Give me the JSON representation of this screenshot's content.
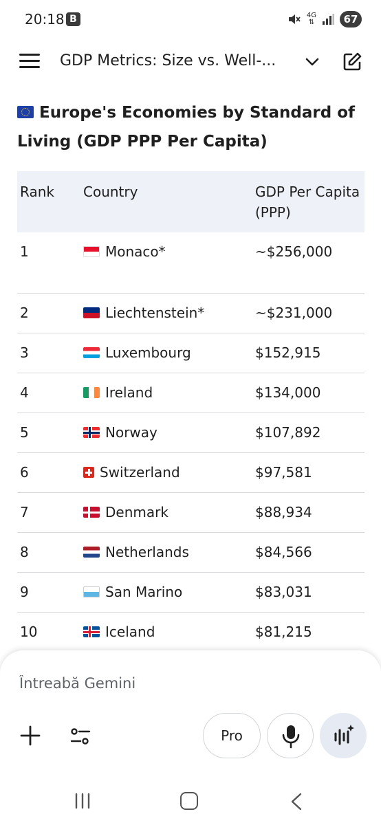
{
  "status_bar": {
    "time": "20:18",
    "notif_badge": "B",
    "network": "4G",
    "battery": "67"
  },
  "header": {
    "title": "GDP Metrics: Size vs. Well-...",
    "menu_icon": "hamburger-menu-icon",
    "chevron_icon": "chevron-down-icon",
    "edit_icon": "edit-icon"
  },
  "content": {
    "heading": "Europe's Economies by Standard of Living (GDP PPP Per Capita)",
    "table": {
      "headers": {
        "rank": "Rank",
        "country": "Country",
        "gdp_line1": "GDP Per Capita",
        "gdp_line2": "(PPP)"
      },
      "rows": [
        {
          "rank": "1",
          "country": "Monaco*",
          "gdp": "~$256,000",
          "flag": "monaco"
        },
        {
          "rank": "2",
          "country": "Liechtenstein*",
          "gdp": "~$231,000",
          "flag": "liechtenstein"
        },
        {
          "rank": "3",
          "country": "Luxembourg",
          "gdp": "$152,915",
          "flag": "luxembourg"
        },
        {
          "rank": "4",
          "country": "Ireland",
          "gdp": "$134,000",
          "flag": "ireland"
        },
        {
          "rank": "5",
          "country": "Norway",
          "gdp": "$107,892",
          "flag": "norway"
        },
        {
          "rank": "6",
          "country": "Switzerland",
          "gdp": "$97,581",
          "flag": "switzerland"
        },
        {
          "rank": "7",
          "country": "Denmark",
          "gdp": "$88,934",
          "flag": "denmark"
        },
        {
          "rank": "8",
          "country": "Netherlands",
          "gdp": "$84,566",
          "flag": "netherlands"
        },
        {
          "rank": "9",
          "country": "San Marino",
          "gdp": "$83,031",
          "flag": "san-marino"
        },
        {
          "rank": "10",
          "country": "Iceland",
          "gdp": "$81,215",
          "flag": "iceland"
        }
      ]
    }
  },
  "input": {
    "placeholder": "Întreabă Gemini",
    "pro_label": "Pro"
  },
  "colors": {
    "header_bg": "#eef1f8",
    "accent_button_bg": "#e6eaf3",
    "row_border": "#d7d9de"
  }
}
